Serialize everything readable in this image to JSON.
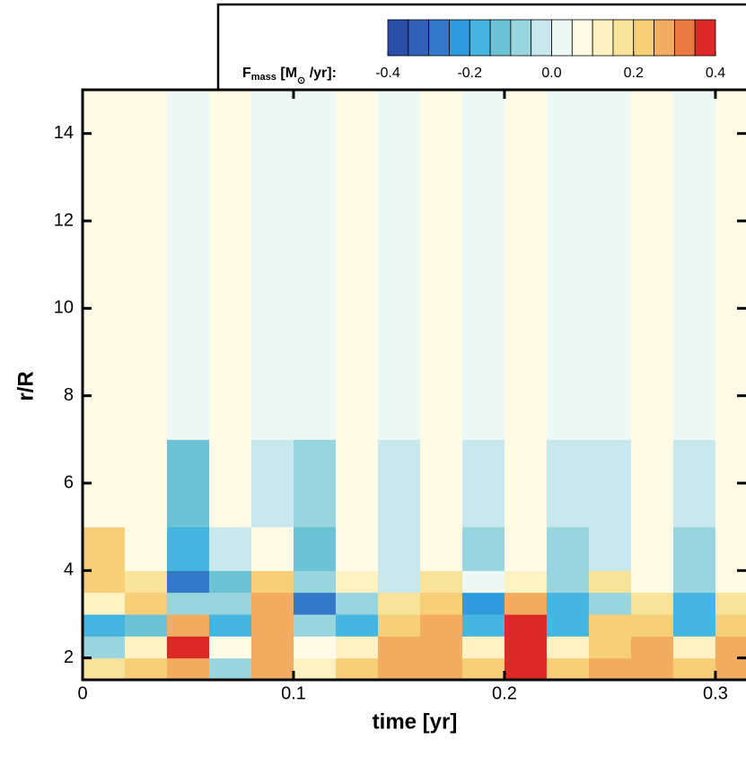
{
  "chart_data": {
    "type": "heatmap",
    "xlabel": "time [yr]",
    "ylabel": "r/R",
    "xlim": [
      0,
      0.3145
    ],
    "ylim": [
      1.5,
      15
    ],
    "xticks": [
      0,
      0.1,
      0.2,
      0.3
    ],
    "yticks": [
      2,
      4,
      6,
      8,
      10,
      12,
      14
    ],
    "x_edges": [
      0,
      0.02,
      0.04,
      0.06,
      0.08,
      0.1,
      0.12,
      0.14,
      0.16,
      0.18,
      0.2,
      0.22,
      0.24,
      0.26,
      0.28,
      0.3,
      0.32
    ],
    "y_edges": [
      1.5,
      2,
      2.5,
      3,
      3.5,
      4,
      5,
      7,
      15
    ],
    "z": [
      [
        0.15,
        0.2,
        0.3,
        -0.1,
        0.25,
        0.1,
        0.2,
        0.25,
        0.3,
        0.2,
        0.35,
        0.2,
        0.25,
        0.3,
        0.2,
        0.25
      ],
      [
        -0.1,
        0.1,
        0.35,
        0.05,
        0.3,
        0.05,
        0.1,
        0.3,
        0.25,
        0.1,
        0.35,
        0.1,
        0.2,
        0.25,
        0.1,
        0.3
      ],
      [
        -0.2,
        -0.15,
        0.3,
        -0.2,
        0.3,
        -0.1,
        -0.2,
        0.2,
        0.3,
        -0.2,
        0.35,
        -0.2,
        0.2,
        0.2,
        -0.2,
        0.2
      ],
      [
        0.1,
        0.2,
        -0.1,
        -0.1,
        0.25,
        -0.3,
        -0.1,
        0.15,
        0.2,
        -0.25,
        0.3,
        -0.2,
        -0.1,
        0.15,
        -0.2,
        0.15
      ],
      [
        0.2,
        0.15,
        -0.3,
        -0.15,
        0.2,
        -0.1,
        0.1,
        -0.05,
        0.15,
        0,
        0.1,
        -0.1,
        0.15,
        0.05,
        -0.1,
        0.05
      ],
      [
        0.2,
        0.05,
        -0.2,
        -0.05,
        0.05,
        -0.15,
        0.05,
        -0.05,
        0.05,
        -0.1,
        0.05,
        -0.1,
        -0.05,
        0.05,
        -0.1,
        0.05
      ],
      [
        0.05,
        0.05,
        -0.15,
        0.05,
        -0.05,
        -0.1,
        0.05,
        -0.05,
        0.05,
        -0.05,
        0.05,
        -0.05,
        -0.05,
        0.05,
        -0.05,
        0.05
      ],
      [
        0.05,
        0.05,
        0,
        0.05,
        0,
        0.03,
        0.05,
        0.03,
        0.05,
        0.03,
        0.05,
        0.03,
        0.03,
        0.05,
        0.03,
        0.05
      ]
    ],
    "colorbar": {
      "label_parts": [
        "F",
        "mass",
        " [M",
        "⊙",
        " /yr]:"
      ],
      "zlim": [
        -0.4,
        0.4
      ],
      "ticks": [
        -0.4,
        -0.2,
        {
          "value": 0,
          "label": "0.0"
        },
        0.2,
        0.4
      ],
      "colors": [
        "#2a4ea6",
        "#2f62b6",
        "#3479c8",
        "#2e9bdc",
        "#45b6e2",
        "#6cc3d6",
        "#98d5df",
        "#c8e8ee",
        "#eef8f4",
        "#fffbe6",
        "#fcf2c2",
        "#f8e39a",
        "#f6cf78",
        "#f2ad62",
        "#ec7a40",
        "#dd2a26"
      ]
    }
  }
}
